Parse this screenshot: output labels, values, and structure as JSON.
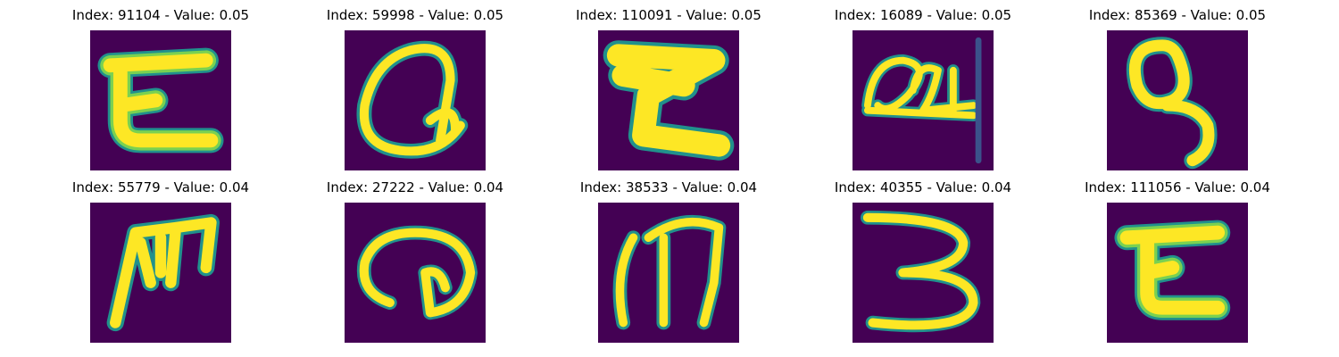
{
  "colors": {
    "background": "#440154",
    "stroke_core": "#fde725",
    "stroke_mid": "#7ad151",
    "stroke_edge": "#21918c",
    "stroke_outer": "#3b528b"
  },
  "tiles": [
    {
      "title": "Index: 91104 - Value: 0.05",
      "glyph": "z-shape"
    },
    {
      "title": "Index: 59998 - Value: 0.05",
      "glyph": "loop-shape"
    },
    {
      "title": "Index: 110091 - Value: 0.05",
      "glyph": "z-shape"
    },
    {
      "title": "Index: 16089 - Value: 0.05",
      "glyph": "scribble-shape"
    },
    {
      "title": "Index: 85369 - Value: 0.05",
      "glyph": "nine-shape"
    },
    {
      "title": "Index: 55779 - Value: 0.04",
      "glyph": "m-shape"
    },
    {
      "title": "Index: 27222 - Value: 0.04",
      "glyph": "spiral-shape"
    },
    {
      "title": "Index: 38533 - Value: 0.04",
      "glyph": "m-shape"
    },
    {
      "title": "Index: 40355 - Value: 0.04",
      "glyph": "three-shape"
    },
    {
      "title": "Index: 111056 - Value: 0.04",
      "glyph": "z-shape"
    }
  ]
}
